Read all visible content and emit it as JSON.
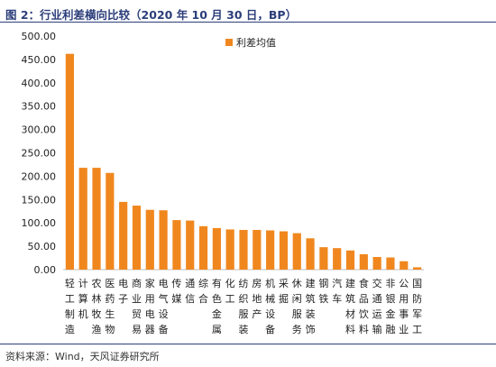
{
  "header": {
    "title": "图 2：行业利差横向比较（2020 年 10 月 30 日，BP）"
  },
  "footer": {
    "source": "资料来源：Wind，天风证券研究所"
  },
  "chart_data": {
    "type": "bar",
    "title": "",
    "xlabel": "",
    "ylabel": "",
    "ylim": [
      0,
      500
    ],
    "yticks": [
      "0.00",
      "50.00",
      "100.00",
      "150.00",
      "200.00",
      "250.00",
      "300.00",
      "350.00",
      "400.00",
      "450.00",
      "500.00"
    ],
    "grid": false,
    "legend_position": "top-right",
    "bar_color": "#F0871E",
    "categories": [
      "轻工制造",
      "计算机",
      "农林牧渔",
      "医药生物",
      "电子",
      "商业贸易",
      "家用电器",
      "电气设备",
      "传媒",
      "通信",
      "综合",
      "有色金属",
      "化工",
      "纺织服装",
      "房地产",
      "机械设备",
      "采掘",
      "休闲服务",
      "建筑装饰",
      "钢铁",
      "汽车",
      "建筑材料",
      "食品饮料",
      "交通运输",
      "非银金融",
      "公用事业",
      "国防军工"
    ],
    "series": [
      {
        "name": "利差均值",
        "values": [
          462,
          218,
          218,
          207,
          145,
          137,
          128,
          127,
          106,
          105,
          93,
          89,
          86,
          85,
          85,
          84,
          82,
          78,
          67,
          48,
          46,
          41,
          33,
          27,
          26,
          18,
          5
        ]
      }
    ]
  }
}
